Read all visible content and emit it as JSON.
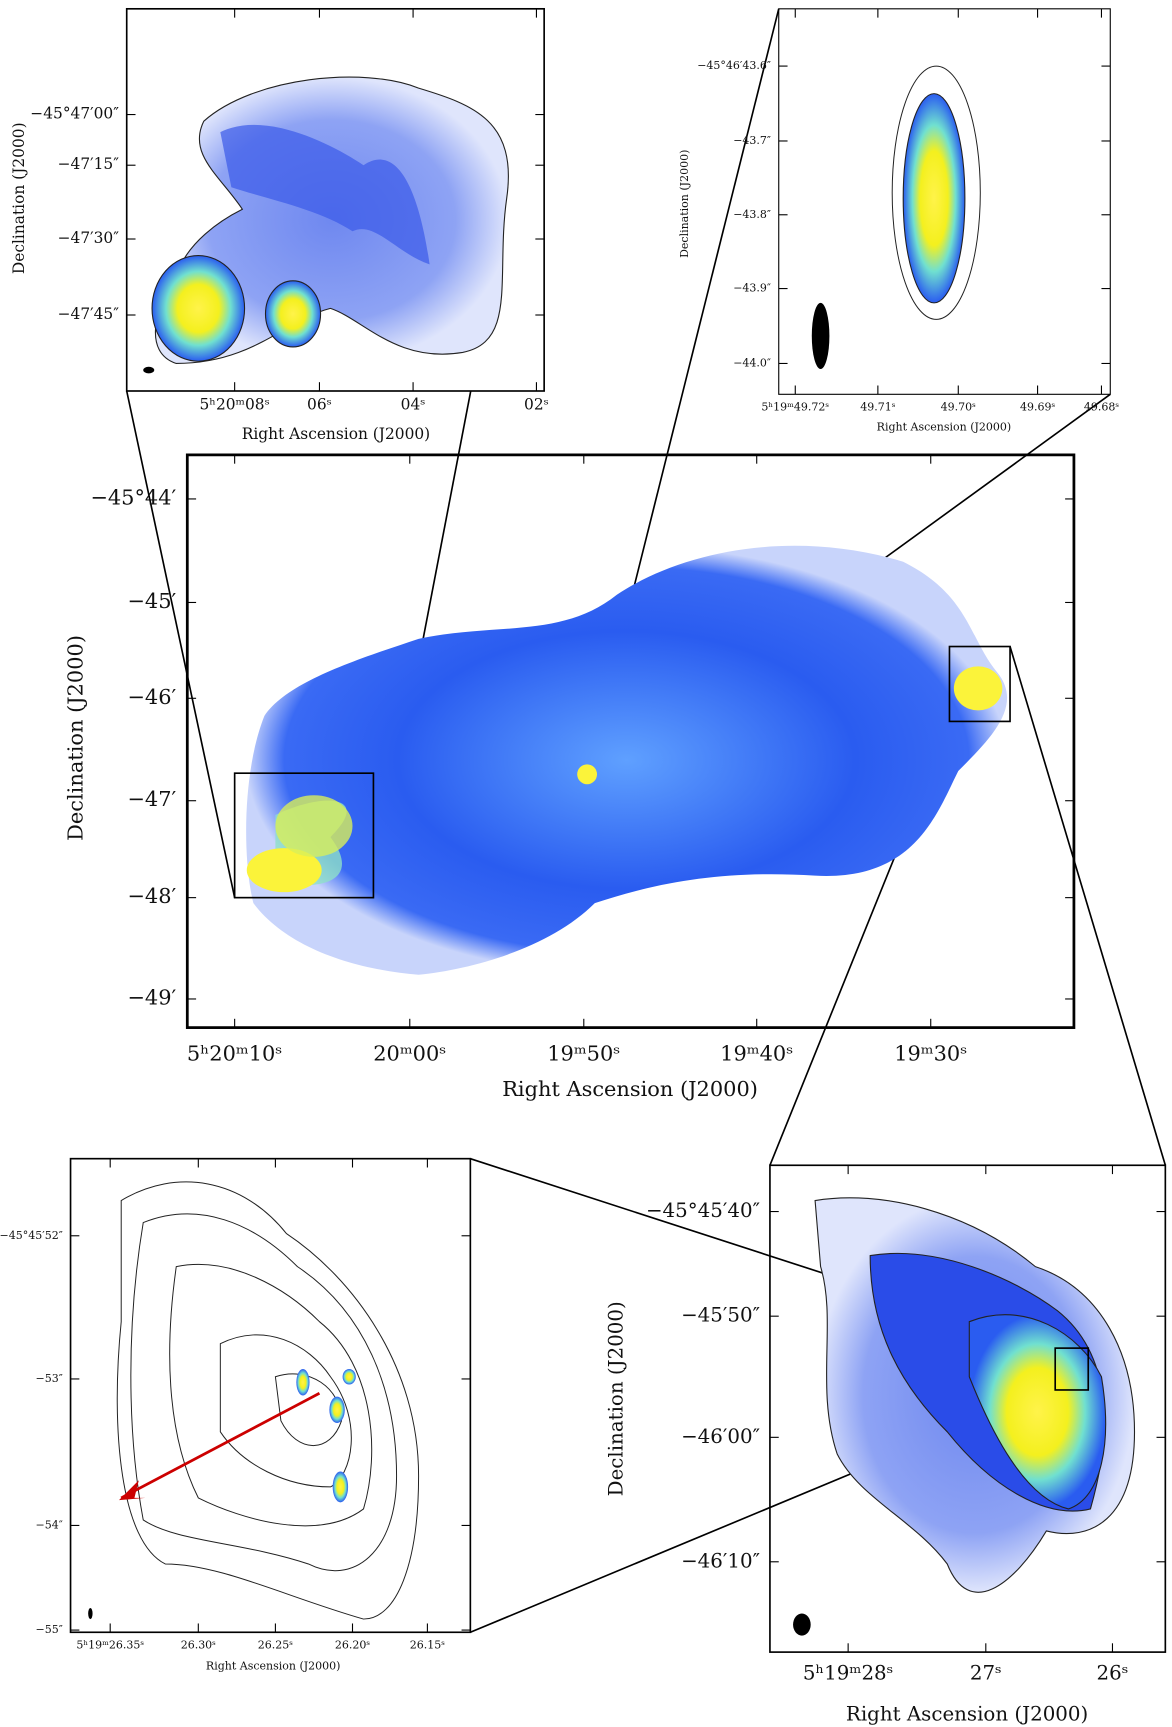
{
  "panels": {
    "top_left": {
      "y_ticks": [
        "−45°47′00″",
        "−47′15″",
        "−47′30″",
        "−47′45″"
      ],
      "x_ticks": [
        "5ʰ20ᵐ08ˢ",
        "06ˢ",
        "04ˢ",
        "02ˢ"
      ],
      "x_label": "Right Ascension (J2000)",
      "y_label": "Declination (J2000)"
    },
    "top_right": {
      "y_ticks": [
        "−45°46′43.6″",
        "−43.7″",
        "−43.8″",
        "−43.9″",
        "−44.0″"
      ],
      "x_ticks": [
        "5ʰ19ᵐ49.72ˢ",
        "49.71ˢ",
        "49.70ˢ",
        "49.69ˢ",
        "49.68ˢ"
      ],
      "x_label": "Right Ascension (J2000)",
      "y_label": "Declination (J2000)"
    },
    "main": {
      "y_ticks": [
        "−45°44′",
        "−45′",
        "−46′",
        "−47′",
        "−48′",
        "−49′"
      ],
      "x_ticks": [
        "5ʰ20ᵐ10ˢ",
        "20ᵐ00ˢ",
        "19ᵐ50ˢ",
        "19ᵐ40ˢ",
        "19ᵐ30ˢ"
      ],
      "x_label": "Right Ascension (J2000)",
      "y_label": "Declination (J2000)"
    },
    "bottom_left": {
      "y_ticks": [
        "−45°45′52″",
        "−53″",
        "−54″",
        "−55″"
      ],
      "x_ticks": [
        "5ʰ19ᵐ26.35ˢ",
        "26.30ˢ",
        "26.25ˢ",
        "26.20ˢ",
        "26.15ˢ"
      ],
      "x_label": "Right Ascension (J2000)",
      "y_label": null
    },
    "bottom_right": {
      "y_ticks": [
        "−45°45′40″",
        "−45′50″",
        "−46′00″",
        "−46′10″"
      ],
      "x_ticks": [
        "5ʰ19ᵐ28ˢ",
        "27ˢ",
        "26ˢ"
      ],
      "x_label": "Right Ascension (J2000)",
      "y_label": "Declination (J2000)"
    }
  }
}
